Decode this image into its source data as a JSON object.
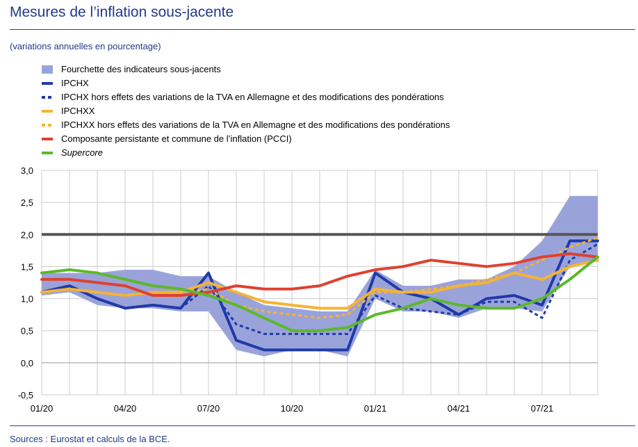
{
  "title": "Mesures de l’inflation sous-jacente",
  "subtitle": "(variations annuelles en pourcentage)",
  "source": "Sources : Eurostat et calculs de la BCE.",
  "legend": [
    {
      "label": "Fourchette des indicateurs sous-jacents",
      "kind": "box",
      "color": "#9aa3d9"
    },
    {
      "label": "IPCHX",
      "kind": "line",
      "color": "#1f3aa8"
    },
    {
      "label": "IPCHX hors effets des variations de la TVA en Allemagne et des modifications des pondérations",
      "kind": "dash",
      "color": "#1f3aa8"
    },
    {
      "label": "IPCHXX",
      "kind": "line",
      "color": "#f5b335"
    },
    {
      "label": "IPCHXX hors effets des variations de la TVA en Allemagne et des modifications des pondérations",
      "kind": "dash",
      "color": "#f5b335"
    },
    {
      "label": "Composante persistante et commune de l’inflation (PCCI)",
      "kind": "line",
      "color": "#e04030"
    },
    {
      "label": "Supercore",
      "kind": "line",
      "color": "#5cb82a",
      "italic": true
    }
  ],
  "chart_data": {
    "type": "line",
    "x": [
      "01/20",
      "02/20",
      "03/20",
      "04/20",
      "05/20",
      "06/20",
      "07/20",
      "08/20",
      "09/20",
      "10/20",
      "11/20",
      "12/20",
      "01/21",
      "02/21",
      "03/21",
      "04/21",
      "05/21",
      "06/21",
      "07/21",
      "08/21",
      "09/21"
    ],
    "x_tick_labels": [
      "01/20",
      "04/20",
      "07/20",
      "10/20",
      "01/21",
      "04/21",
      "07/21"
    ],
    "y_ticks": [
      "-0,5",
      "0,0",
      "0,5",
      "1,0",
      "1,5",
      "2,0",
      "2,5",
      "3,0"
    ],
    "ylim": [
      -0.5,
      3.0
    ],
    "grid": true,
    "reference_line": 2.0,
    "band": {
      "name": "Fourchette des indicateurs sous-jacents",
      "low": [
        1.05,
        1.1,
        0.9,
        0.85,
        0.85,
        0.8,
        0.8,
        0.2,
        0.1,
        0.2,
        0.2,
        0.1,
        1.0,
        0.8,
        0.8,
        0.7,
        0.85,
        0.85,
        0.8,
        1.5,
        1.6
      ],
      "high": [
        1.4,
        1.4,
        1.4,
        1.45,
        1.45,
        1.35,
        1.35,
        1.1,
        0.9,
        0.85,
        0.8,
        0.8,
        1.45,
        1.2,
        1.2,
        1.3,
        1.3,
        1.5,
        1.9,
        2.6,
        2.6
      ]
    },
    "series": [
      {
        "name": "IPCHX",
        "color": "#1f3aa8",
        "width": 4,
        "dash": false,
        "values": [
          1.1,
          1.2,
          1.0,
          0.85,
          0.9,
          0.85,
          1.4,
          0.35,
          0.2,
          0.2,
          0.2,
          0.2,
          1.4,
          1.1,
          1.0,
          0.75,
          1.0,
          1.05,
          0.9,
          1.9,
          1.9
        ]
      },
      {
        "name": "IPCHX hors effets des variations de la TVA en Allemagne et des modifications des pondérations",
        "color": "#1f3aa8",
        "width": 3,
        "dash": true,
        "values": [
          1.1,
          1.2,
          1.0,
          0.85,
          0.9,
          0.85,
          1.2,
          0.6,
          0.45,
          0.45,
          0.45,
          0.45,
          1.05,
          0.85,
          0.8,
          0.75,
          0.95,
          0.95,
          0.7,
          1.6,
          1.85
        ]
      },
      {
        "name": "IPCHXX",
        "color": "#f5b335",
        "width": 4,
        "dash": false,
        "values": [
          1.1,
          1.15,
          1.1,
          1.05,
          1.1,
          1.1,
          1.25,
          1.1,
          0.95,
          0.9,
          0.85,
          0.85,
          1.15,
          1.1,
          1.1,
          1.2,
          1.25,
          1.4,
          1.3,
          1.5,
          1.6
        ]
      },
      {
        "name": "IPCHXX hors effets des variations de la TVA en Allemagne et des modifications des pondérations",
        "color": "#f5b335",
        "width": 3,
        "dash": true,
        "values": [
          1.1,
          1.15,
          1.1,
          1.05,
          1.1,
          1.1,
          1.15,
          0.9,
          0.8,
          0.75,
          0.7,
          0.75,
          1.1,
          1.1,
          1.15,
          1.2,
          1.3,
          1.4,
          1.6,
          1.8,
          1.95
        ]
      },
      {
        "name": "Composante persistante et commune de l’inflation (PCCI)",
        "color": "#e04030",
        "width": 4,
        "dash": false,
        "values": [
          1.3,
          1.3,
          1.25,
          1.2,
          1.05,
          1.05,
          1.1,
          1.2,
          1.15,
          1.15,
          1.2,
          1.35,
          1.45,
          1.5,
          1.6,
          1.55,
          1.5,
          1.55,
          1.65,
          1.7,
          1.65
        ]
      },
      {
        "name": "Supercore",
        "color": "#5cb82a",
        "width": 4,
        "dash": false,
        "values": [
          1.4,
          1.45,
          1.4,
          1.3,
          1.2,
          1.15,
          1.05,
          0.9,
          0.7,
          0.5,
          0.5,
          0.55,
          0.75,
          0.85,
          1.0,
          0.9,
          0.85,
          0.85,
          1.0,
          1.3,
          1.65
        ]
      }
    ]
  }
}
